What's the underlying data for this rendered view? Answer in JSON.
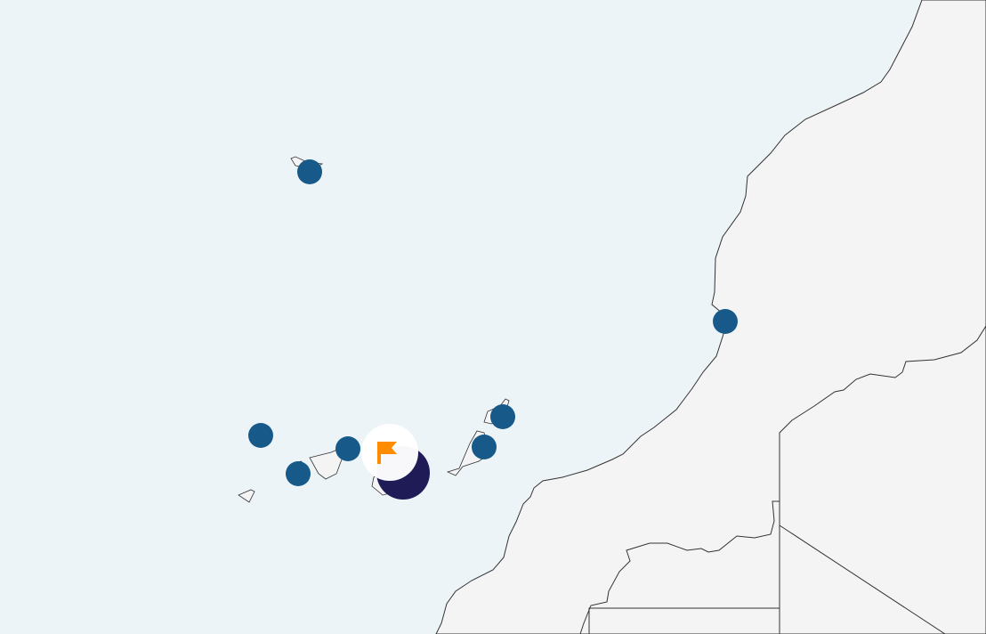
{
  "map": {
    "colors": {
      "sea": "#ecf4f8",
      "land": "#f4f4f4",
      "border": "#333333",
      "marker": "#175a8a",
      "selected_marker": "#1f1b57",
      "flag": "#ff8c00",
      "flag_badge": "#ffffff"
    },
    "markers": [
      {
        "name": "marker-la-palma"
      },
      {
        "name": "marker-tenerife"
      },
      {
        "name": "marker-la-gomera"
      },
      {
        "name": "marker-lanzarote"
      },
      {
        "name": "marker-fuerteventura"
      },
      {
        "name": "marker-madeira"
      },
      {
        "name": "marker-coast"
      }
    ],
    "selected_marker_icon": "flag-icon"
  }
}
